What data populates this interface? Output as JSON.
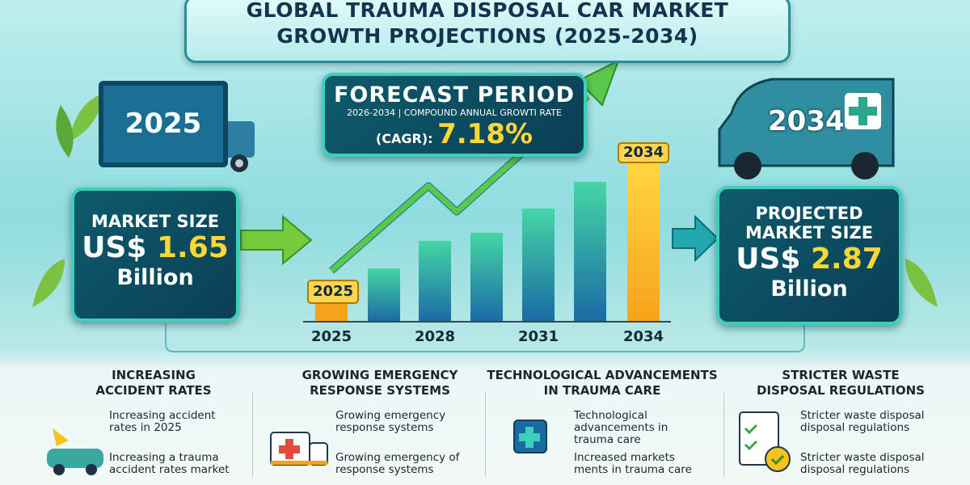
{
  "header": {
    "title_line1": "GLOBAL TRAUMA DISPOSAL CAR MARKET",
    "title_line2": "GROWTH PROJECTIONS (2025-2034)"
  },
  "left": {
    "year": "2025",
    "label": "MARKET SIZE",
    "currency": "US$",
    "value": "1.65",
    "unit": "Billion"
  },
  "forecast": {
    "title": "FORECAST PERIOD",
    "subtitle": "2026-2034 | COMPOUND ANNUAL GROWTI RATE",
    "cagr_label": "(CAGR):",
    "cagr": "7.18%"
  },
  "chart": {
    "start_label": "2025",
    "end_label": "2034",
    "axis_labels": [
      "2025",
      "2028",
      "2031",
      "2034"
    ]
  },
  "right": {
    "year": "2034",
    "label_line1": "PROJECTED",
    "label_line2": "MARKET SIZE",
    "currency": "US$",
    "value": "2.87",
    "unit": "Billion"
  },
  "factors": [
    {
      "title_lines": [
        "INCREASING",
        "ACCIDENT RATES"
      ],
      "items": [
        "Increasing accident rates in 2025",
        "Increasing a trauma accident rates market"
      ]
    },
    {
      "title_lines": [
        "GROWING EMERGENCY",
        "RESPONSE SYSTEMS"
      ],
      "items": [
        "Growing emergency response systems",
        "Growing emergency of response systems"
      ]
    },
    {
      "title_lines": [
        "TECHNOLOGICAL ADVANCEMENTS",
        "IN TRAUMA CARE"
      ],
      "items": [
        "Technological advancements in trauma care",
        "Increased markets ments in trauma care"
      ]
    },
    {
      "title_lines": [
        "STRICTER WASTE",
        "DISPOSAL REGULATIONS"
      ],
      "items": [
        "Stricter waste disposal disposal regulations",
        "Stricter waste disposal disposal regulations"
      ]
    }
  ]
}
